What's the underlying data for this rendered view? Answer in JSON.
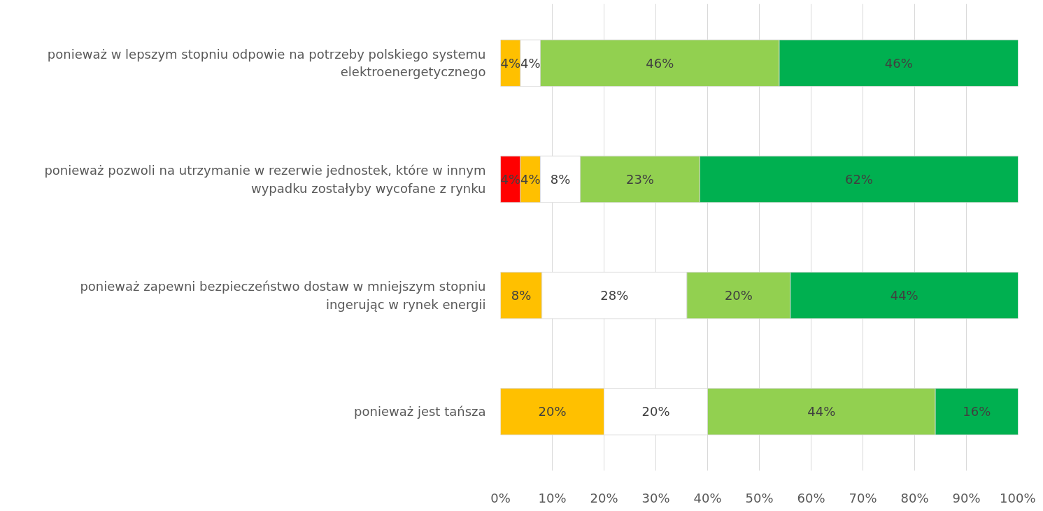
{
  "chart_data": {
    "type": "bar",
    "orientation": "horizontal",
    "stacked": true,
    "categories": [
      "ponieważ w lepszym stopniu odpowie na potrzeby polskiego systemu elektroenergetycznego",
      "ponieważ pozwoli na utrzymanie w rezerwie jednostek, które w innym wypadku zostałyby wycofane z rynku",
      "ponieważ zapewni bezpieczeństwo dostaw w mniejszym stopniu ingerując w rynek energii",
      "ponieważ jest tańsza"
    ],
    "series": [
      {
        "color": "#ff0000",
        "values": [
          null,
          3.85,
          null,
          null
        ],
        "value_labels": [
          null,
          "4%",
          null,
          null
        ]
      },
      {
        "color": "#ffc000",
        "values": [
          3.85,
          3.85,
          8,
          20
        ],
        "value_labels": [
          "4%",
          "4%",
          "8%",
          "20%"
        ]
      },
      {
        "color": "#ffffff",
        "values": [
          3.85,
          7.7,
          28,
          20
        ],
        "value_labels": [
          "4%",
          "8%",
          "28%",
          "20%"
        ]
      },
      {
        "color": "#92d050",
        "values": [
          46.15,
          23.1,
          20,
          44
        ],
        "value_labels": [
          "46%",
          "23%",
          "20%",
          "44%"
        ]
      },
      {
        "color": "#00b050",
        "values": [
          46.15,
          61.5,
          44,
          16
        ],
        "value_labels": [
          "46%",
          "62%",
          "44%",
          "16%"
        ]
      }
    ],
    "xlim": [
      0,
      100
    ],
    "xticks": [
      {
        "value": 0,
        "label": "0%"
      },
      {
        "value": 10,
        "label": "10%"
      },
      {
        "value": 20,
        "label": "20%"
      },
      {
        "value": 30,
        "label": "30%"
      },
      {
        "value": 40,
        "label": "40%"
      },
      {
        "value": 50,
        "label": "50%"
      },
      {
        "value": 60,
        "label": "60%"
      },
      {
        "value": 70,
        "label": "70%"
      },
      {
        "value": 80,
        "label": "80%"
      },
      {
        "value": 90,
        "label": "90%"
      },
      {
        "value": 100,
        "label": "100%"
      }
    ],
    "grid": "x"
  }
}
